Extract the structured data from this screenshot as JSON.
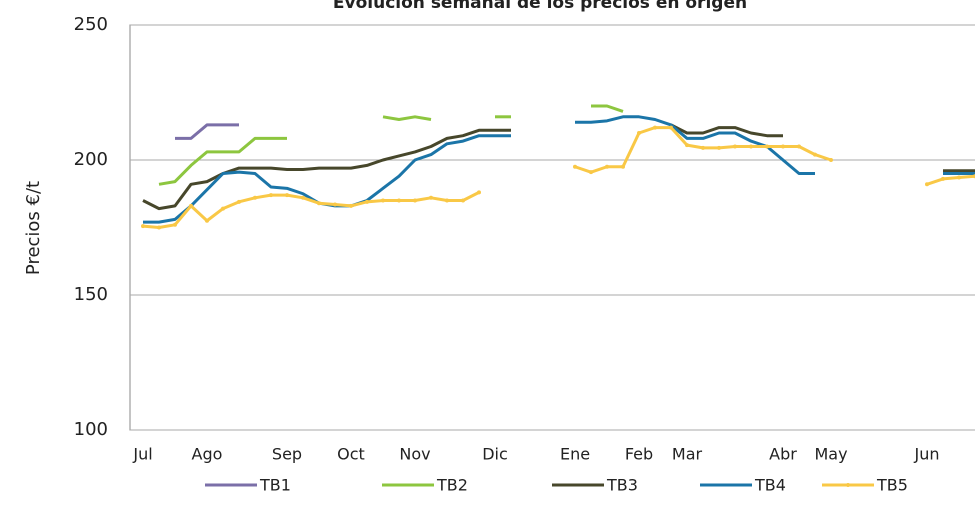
{
  "chart_data": {
    "type": "line",
    "title": "Evolución semanal de los precios en origen",
    "y_label": "Precios €/t",
    "categories": [
      "Jul",
      null,
      null,
      null,
      "Ago",
      null,
      null,
      null,
      null,
      "Sep",
      null,
      null,
      null,
      "Oct",
      null,
      null,
      null,
      "Nov",
      null,
      null,
      null,
      null,
      "Dic",
      null,
      null,
      null,
      null,
      "Ene",
      null,
      null,
      null,
      "Feb",
      null,
      null,
      "Mar",
      null,
      null,
      null,
      null,
      null,
      "Abr",
      null,
      null,
      "May",
      null,
      null,
      null,
      null,
      null,
      "Jun",
      null,
      null,
      null
    ],
    "ylim": [
      100,
      250
    ],
    "yticks": [
      100,
      150,
      200,
      250
    ],
    "grid": true,
    "legend": "bottom",
    "series": [
      {
        "name": "TB1",
        "color": "#7b6fa8",
        "values": [
          null,
          null,
          208,
          208,
          213,
          213,
          213,
          null,
          null,
          null,
          null,
          null,
          null,
          null,
          null,
          null,
          null,
          null,
          null,
          null,
          null,
          null,
          null,
          null,
          null,
          null,
          null,
          null,
          null,
          null,
          null,
          null,
          null,
          null,
          null,
          null,
          null,
          null,
          null,
          null,
          null,
          null,
          null,
          null,
          null,
          null,
          null,
          null,
          null,
          null,
          null,
          null,
          null
        ]
      },
      {
        "name": "TB2",
        "color": "#8dc63f",
        "values": [
          null,
          191,
          192,
          198,
          203,
          203,
          203,
          208,
          208,
          208,
          null,
          null,
          null,
          null,
          null,
          216,
          215,
          216,
          215,
          null,
          null,
          null,
          216,
          216,
          null,
          null,
          null,
          null,
          220,
          220,
          218,
          null,
          null,
          null,
          null,
          null,
          null,
          null,
          null,
          null,
          null,
          null,
          null,
          null,
          null,
          null,
          null,
          null,
          null,
          null,
          null,
          null,
          null
        ]
      },
      {
        "name": "TB3",
        "color": "#47472b",
        "values": [
          185,
          182,
          183,
          191,
          192,
          195,
          197,
          197,
          197,
          196.5,
          196.5,
          197,
          197,
          197,
          198,
          200,
          201.5,
          203,
          205,
          208,
          209,
          211,
          211,
          211,
          null,
          null,
          null,
          null,
          null,
          null,
          null,
          null,
          null,
          213,
          210,
          210,
          212,
          212,
          210,
          209,
          209,
          null,
          null,
          null,
          null,
          null,
          null,
          null,
          null,
          null,
          196,
          196,
          196
        ]
      },
      {
        "name": "TB4",
        "color": "#1b75a8",
        "values": [
          177,
          177,
          178,
          183,
          189,
          195,
          195.5,
          195,
          190,
          189.5,
          187.5,
          184,
          183,
          183,
          185,
          189.5,
          194,
          200,
          202,
          206,
          207,
          209,
          209,
          209,
          null,
          null,
          null,
          214,
          214,
          214.5,
          216,
          216,
          215,
          213,
          208,
          208,
          210,
          210,
          207,
          205,
          200,
          195,
          195,
          null,
          null,
          null,
          null,
          null,
          null,
          null,
          195,
          195,
          195
        ]
      },
      {
        "name": "TB5",
        "color": "#f9c846",
        "markers": true,
        "values": [
          175.5,
          175,
          176,
          183,
          177.5,
          182,
          184.5,
          186,
          187,
          187,
          186,
          184,
          183.5,
          183,
          184.5,
          185,
          185,
          185,
          186,
          185,
          185,
          188,
          null,
          null,
          null,
          null,
          null,
          197.5,
          195.5,
          197.5,
          197.5,
          210,
          212,
          212,
          205.5,
          204.5,
          204.5,
          205,
          205,
          205,
          205,
          205,
          202,
          200,
          null,
          null,
          null,
          null,
          null,
          191,
          193,
          193.5,
          194
        ]
      }
    ]
  }
}
